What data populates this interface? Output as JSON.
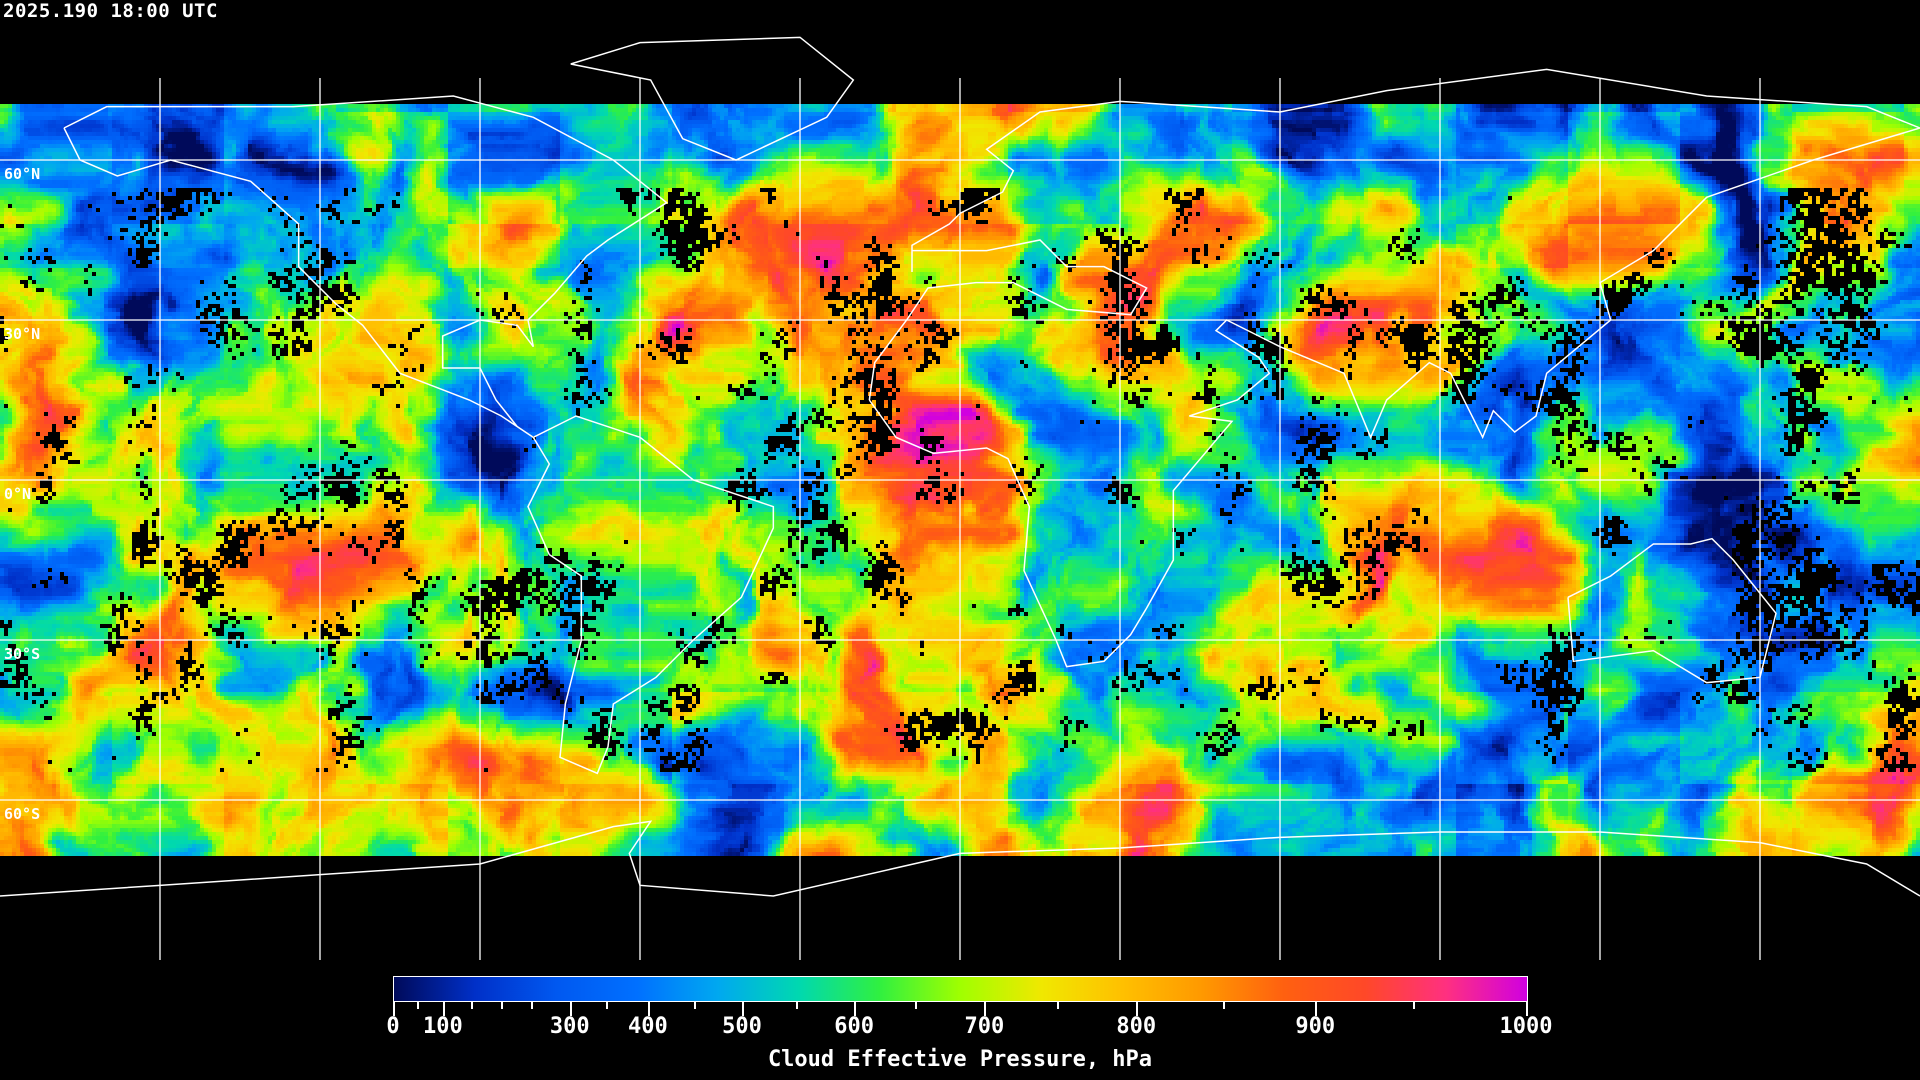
{
  "header": {
    "timestamp": "2025.190 18:00 UTC"
  },
  "map": {
    "projection": "equirectangular",
    "lon_range": [
      -180,
      180
    ],
    "lat_range": [
      90,
      -90
    ],
    "gridline_spacing_deg": 30,
    "gridline_color": "#ffffff",
    "coastline_color": "#ffffff",
    "no_data_color": "#000000",
    "lat_labels": [
      {
        "lat": 60,
        "text": "60°N"
      },
      {
        "lat": 30,
        "text": "30°N"
      },
      {
        "lat": 0,
        "text": "0°N"
      },
      {
        "lat": -30,
        "text": "30°S"
      },
      {
        "lat": -60,
        "text": "60°S"
      }
    ]
  },
  "colorbar": {
    "title": "Cloud Effective Pressure, hPa",
    "range": [
      0,
      1000
    ],
    "tick_labels": [
      "0",
      "100",
      "300",
      "400",
      "500",
      "600",
      "700",
      "800",
      "900",
      "1000"
    ],
    "colors": [
      "#000a5a",
      "#0030c8",
      "#0058f0",
      "#0070ff",
      "#00a8f0",
      "#00d8b0",
      "#30f040",
      "#a0ff00",
      "#f0e800",
      "#ffc000",
      "#ff9800",
      "#ff6010",
      "#ff4828",
      "#ff3080",
      "#d000e0"
    ]
  }
}
